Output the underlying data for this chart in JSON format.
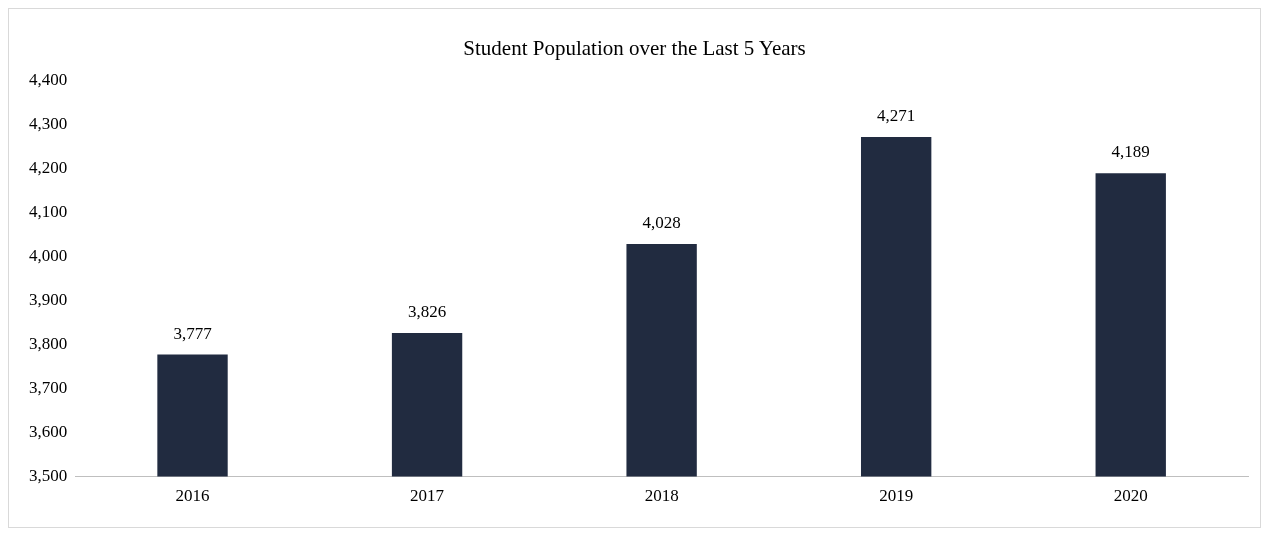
{
  "chart_data": {
    "type": "bar",
    "title": "Student Population over the Last 5 Years",
    "categories": [
      "2016",
      "2017",
      "2018",
      "2019",
      "2020"
    ],
    "values": [
      3777,
      3826,
      4028,
      4271,
      4189
    ],
    "value_labels": [
      "3,777",
      "3,826",
      "4,028",
      "4,271",
      "4,189"
    ],
    "color": "#212b40",
    "ylim": [
      3500,
      4400
    ],
    "yticks": [
      {
        "value": 3500,
        "label": "3,500"
      },
      {
        "value": 3600,
        "label": "3,600"
      },
      {
        "value": 3700,
        "label": "3,700"
      },
      {
        "value": 3800,
        "label": "3,800"
      },
      {
        "value": 3900,
        "label": "3,900"
      },
      {
        "value": 4000,
        "label": "4,000"
      },
      {
        "value": 4100,
        "label": "4,100"
      },
      {
        "value": 4200,
        "label": "4,200"
      },
      {
        "value": 4300,
        "label": "4,300"
      },
      {
        "value": 4400,
        "label": "4,400"
      }
    ],
    "grid": false
  }
}
